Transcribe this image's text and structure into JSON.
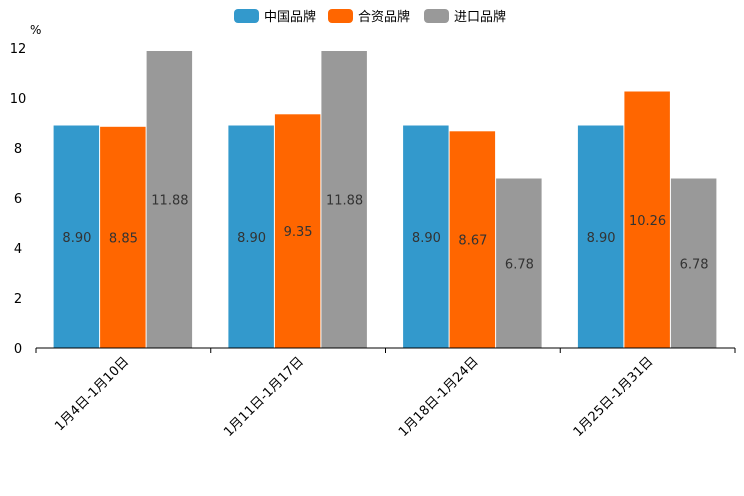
{
  "chart_data": {
    "type": "bar",
    "title": "",
    "xlabel": "",
    "ylabel": "%",
    "ylim": [
      0,
      12
    ],
    "yticks": [
      "0",
      "2",
      "4",
      "6",
      "8",
      "10",
      "12"
    ],
    "grid": false,
    "legend_position": "top-center",
    "categories": [
      "1月4日-1月10日",
      "1月11日-1月17日",
      "1月18日-1月24日",
      "1月25日-1月31日"
    ],
    "series": [
      {
        "name": "中国品牌",
        "color": "#3399cc",
        "values": [
          8.9,
          8.9,
          8.9,
          8.9
        ],
        "labels": [
          "8.90",
          "8.90",
          "8.90",
          "8.90"
        ]
      },
      {
        "name": "合资品牌",
        "color": "#ff6600",
        "values": [
          8.85,
          9.35,
          8.67,
          10.26
        ],
        "labels": [
          "8.85",
          "9.35",
          "8.67",
          "10.26"
        ]
      },
      {
        "name": "进口品牌",
        "color": "#999999",
        "values": [
          11.88,
          11.88,
          6.78,
          6.78
        ],
        "labels": [
          "11.88",
          "11.88",
          "6.78",
          "6.78"
        ]
      }
    ]
  }
}
